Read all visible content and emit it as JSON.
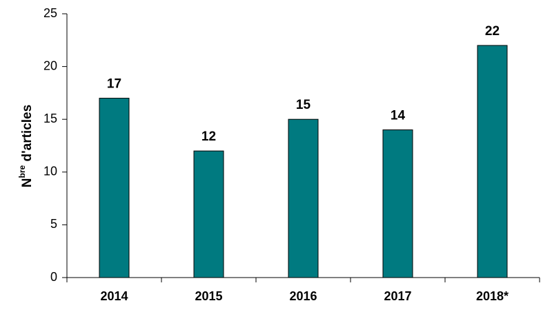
{
  "chart_data": {
    "type": "bar",
    "y_label_parts": [
      "N",
      "bre",
      " d'articles"
    ],
    "categories": [
      "2014",
      "2015",
      "2016",
      "2017",
      "2018*"
    ],
    "values": [
      17,
      12,
      15,
      14,
      22
    ],
    "color": "#007a80",
    "ylim": [
      0,
      25
    ],
    "yticks": [
      0,
      5,
      10,
      15,
      20,
      25
    ],
    "grid": false,
    "value_labels_shown": true
  }
}
